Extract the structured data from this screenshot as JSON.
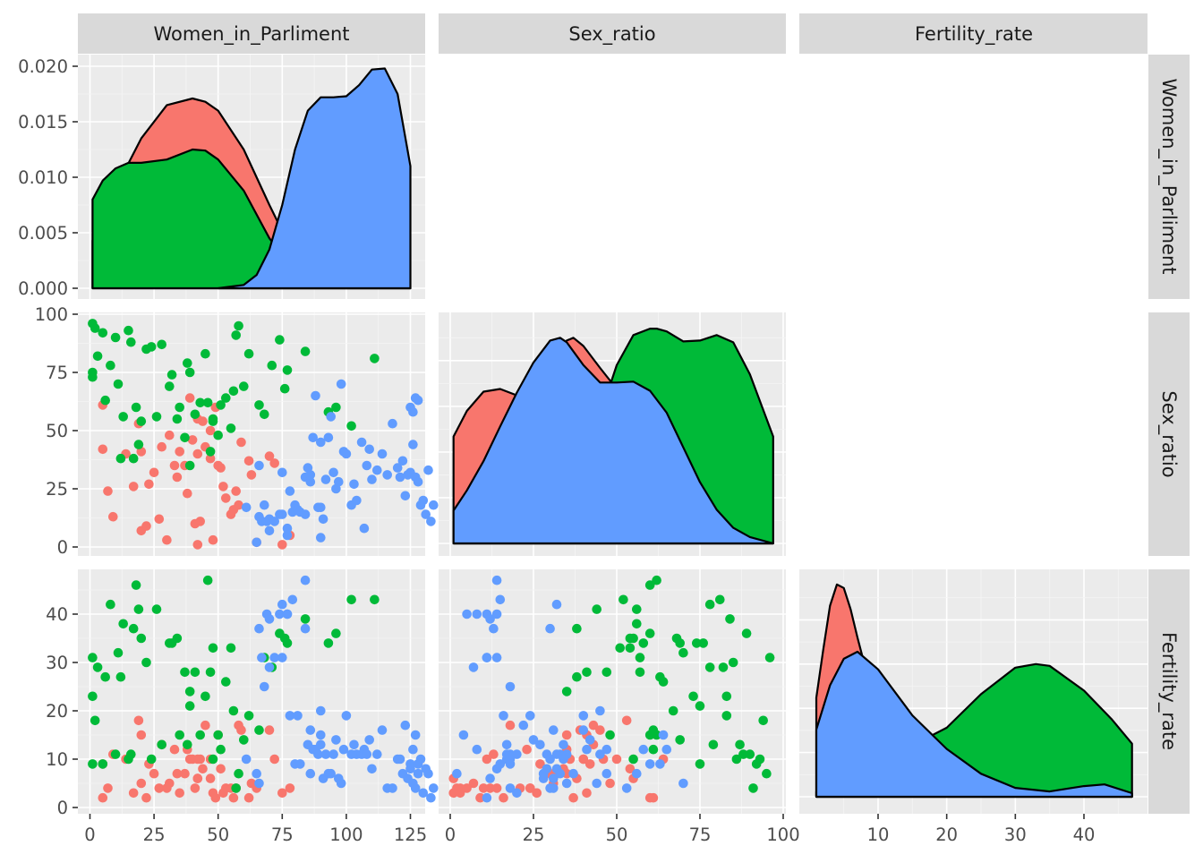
{
  "chart_data": {
    "type": "scatter",
    "title": "",
    "variables": [
      "Women_in_Parliment",
      "Sex_ratio",
      "Fertility_rate"
    ],
    "group_colors": [
      "#F8766D",
      "#00BA38",
      "#619CFF"
    ],
    "axes": {
      "Women_in_Parliment": {
        "range": [
          0,
          125
        ],
        "ticks": [
          "0",
          "25",
          "50",
          "75",
          "100",
          "125"
        ]
      },
      "Sex_ratio": {
        "range": [
          0,
          97
        ],
        "ticks": [
          "0",
          "25",
          "50",
          "75",
          "100"
        ]
      },
      "Fertility_rate": {
        "range": [
          1,
          47
        ],
        "ticks": [
          "10",
          "20",
          "30",
          "40"
        ]
      },
      "density_y": {
        "range": [
          0,
          0.0205
        ],
        "ticks": [
          "0.000",
          "0.005",
          "0.010",
          "0.015",
          "0.020"
        ]
      },
      "sex_ratio_y_ticks": [
        "0",
        "25",
        "50",
        "75",
        "100"
      ],
      "fertility_y_ticks": [
        "0",
        "10",
        "20",
        "30",
        "40"
      ],
      "sex_ratio_x_ticks": [
        "0",
        "25",
        "50",
        "75",
        "100"
      ]
    },
    "density_women": [
      {
        "x": [
          1,
          10,
          20,
          30,
          40,
          45,
          50,
          60,
          70,
          80,
          90,
          100,
          110,
          125
        ],
        "y": [
          0.0043,
          0.009,
          0.0135,
          0.0165,
          0.0171,
          0.0168,
          0.016,
          0.0125,
          0.0075,
          0.0028,
          0.0008,
          0.0001,
          0.0,
          0.0
        ]
      },
      {
        "x": [
          1,
          5,
          10,
          15,
          20,
          30,
          40,
          45,
          50,
          60,
          70,
          80,
          90,
          100,
          125
        ],
        "y": [
          0.008,
          0.0097,
          0.0108,
          0.0113,
          0.0113,
          0.0116,
          0.0125,
          0.0124,
          0.0116,
          0.0088,
          0.0045,
          0.0015,
          0.0003,
          0.0,
          0.0
        ]
      },
      {
        "x": [
          50,
          60,
          65,
          70,
          75,
          80,
          85,
          90,
          95,
          100,
          105,
          110,
          115,
          120,
          125
        ],
        "y": [
          0.0,
          0.0003,
          0.0012,
          0.0035,
          0.0075,
          0.0125,
          0.016,
          0.0172,
          0.0172,
          0.0173,
          0.0183,
          0.0197,
          0.0198,
          0.0175,
          0.011
        ]
      }
    ],
    "density_sex": [
      {
        "x": [
          1,
          5,
          10,
          15,
          20,
          25,
          30,
          35,
          37,
          40,
          45,
          50,
          55,
          60,
          65,
          70,
          75,
          80,
          85,
          90,
          97
        ],
        "y": [
          0.0117,
          0.0145,
          0.0166,
          0.0169,
          0.0162,
          0.0177,
          0.0202,
          0.0222,
          0.0225,
          0.0216,
          0.0192,
          0.0169,
          0.0145,
          0.012,
          0.0095,
          0.007,
          0.0045,
          0.0025,
          0.0012,
          0.0004,
          0.0
        ]
      },
      {
        "x": [
          1,
          10,
          20,
          30,
          40,
          45,
          50,
          55,
          60,
          62,
          65,
          70,
          75,
          80,
          85,
          90,
          97
        ],
        "y": [
          0.0,
          0.0001,
          0.0005,
          0.0025,
          0.0085,
          0.014,
          0.0195,
          0.0228,
          0.0235,
          0.0235,
          0.0232,
          0.0221,
          0.0222,
          0.0228,
          0.022,
          0.0185,
          0.0117
        ]
      },
      {
        "x": [
          1,
          5,
          10,
          15,
          20,
          25,
          30,
          33,
          35,
          40,
          45,
          50,
          55,
          60,
          65,
          70,
          75,
          80,
          85,
          90,
          97
        ],
        "y": [
          0.0036,
          0.0058,
          0.009,
          0.0128,
          0.0165,
          0.0198,
          0.0222,
          0.0225,
          0.022,
          0.0195,
          0.0176,
          0.0176,
          0.0177,
          0.0167,
          0.0143,
          0.0105,
          0.0067,
          0.0037,
          0.0017,
          0.0007,
          0.0
        ]
      }
    ],
    "density_fert": [
      {
        "x": [
          1,
          2,
          3,
          4,
          5,
          6,
          7,
          8,
          10,
          12,
          15,
          20,
          25,
          30,
          40,
          47
        ],
        "y": [
          0.056,
          0.083,
          0.108,
          0.12,
          0.118,
          0.106,
          0.09,
          0.075,
          0.059,
          0.05,
          0.04,
          0.022,
          0.01,
          0.004,
          0.0005,
          0.0
        ]
      },
      {
        "x": [
          1,
          5,
          10,
          15,
          20,
          25,
          30,
          33,
          35,
          40,
          44,
          47
        ],
        "y": [
          0.003,
          0.008,
          0.02,
          0.029,
          0.039,
          0.058,
          0.073,
          0.075,
          0.074,
          0.06,
          0.044,
          0.03
        ]
      },
      {
        "x": [
          1,
          3,
          5,
          7,
          10,
          15,
          20,
          25,
          30,
          35,
          40,
          43,
          47
        ],
        "y": [
          0.038,
          0.063,
          0.078,
          0.082,
          0.072,
          0.046,
          0.027,
          0.013,
          0.005,
          0.003,
          0.006,
          0.007,
          0.002
        ]
      }
    ],
    "points": [
      [
        [
          5,
          61,
          2
        ],
        [
          5,
          42,
          9
        ],
        [
          7,
          24,
          4
        ],
        [
          9,
          13,
          11
        ],
        [
          14,
          40,
          10
        ],
        [
          17,
          26,
          3
        ],
        [
          19,
          53,
          18
        ],
        [
          20,
          41,
          15
        ],
        [
          20,
          7,
          5
        ],
        [
          22,
          9,
          2
        ],
        [
          23,
          27,
          9
        ],
        [
          25,
          32,
          7
        ],
        [
          27,
          12,
          4
        ],
        [
          28,
          43,
          13
        ],
        [
          30,
          3,
          4
        ],
        [
          31,
          48,
          5
        ],
        [
          33,
          35,
          12
        ],
        [
          34,
          30,
          7
        ],
        [
          35,
          41,
          3
        ],
        [
          37,
          35,
          7
        ],
        [
          38,
          23,
          12
        ],
        [
          39,
          64,
          10
        ],
        [
          40,
          46,
          10
        ],
        [
          41,
          10,
          4
        ],
        [
          42,
          55,
          6
        ],
        [
          42,
          40,
          10
        ],
        [
          42,
          1,
          6
        ],
        [
          43,
          11,
          10
        ],
        [
          44,
          54,
          8
        ],
        [
          45,
          43,
          17
        ],
        [
          47,
          50,
          10
        ],
        [
          47,
          38,
          6
        ],
        [
          48,
          3,
          3
        ],
        [
          49,
          60,
          2
        ],
        [
          50,
          35,
          15
        ],
        [
          51,
          34,
          8
        ],
        [
          52,
          26,
          3
        ],
        [
          53,
          21,
          4
        ],
        [
          55,
          14,
          4
        ],
        [
          56,
          16,
          2
        ],
        [
          57,
          24,
          4
        ],
        [
          58,
          18,
          17
        ],
        [
          59,
          45,
          16
        ],
        [
          62,
          37,
          2
        ],
        [
          63,
          31,
          5
        ],
        [
          65,
          2,
          4
        ],
        [
          70,
          39,
          16
        ],
        [
          72,
          36,
          10
        ],
        [
          75,
          1,
          3
        ],
        [
          78,
          5,
          4
        ]
      ],
      [
        [
          1,
          75,
          9
        ],
        [
          1,
          73,
          23
        ],
        [
          1,
          96,
          31
        ],
        [
          2,
          94,
          18
        ],
        [
          3,
          82,
          29
        ],
        [
          5,
          92,
          9
        ],
        [
          6,
          63,
          27
        ],
        [
          8,
          78,
          42
        ],
        [
          10,
          90,
          11
        ],
        [
          11,
          70,
          32
        ],
        [
          12,
          38,
          27
        ],
        [
          13,
          56,
          38
        ],
        [
          15,
          93,
          10
        ],
        [
          16,
          88,
          11
        ],
        [
          17,
          38,
          37
        ],
        [
          18,
          60,
          46
        ],
        [
          19,
          44,
          41
        ],
        [
          20,
          54,
          35
        ],
        [
          22,
          85,
          30
        ],
        [
          24,
          86,
          10
        ],
        [
          26,
          56,
          41
        ],
        [
          28,
          87,
          13
        ],
        [
          31,
          69,
          34
        ],
        [
          32,
          74,
          34
        ],
        [
          34,
          55,
          35
        ],
        [
          35,
          60,
          15
        ],
        [
          37,
          47,
          28
        ],
        [
          38,
          79,
          13
        ],
        [
          39,
          75,
          21
        ],
        [
          39,
          35,
          24
        ],
        [
          41,
          57,
          28
        ],
        [
          43,
          62,
          15
        ],
        [
          45,
          83,
          23
        ],
        [
          46,
          62,
          47
        ],
        [
          47,
          41,
          28
        ],
        [
          48,
          54,
          33
        ],
        [
          48,
          55,
          10
        ],
        [
          50,
          48,
          15
        ],
        [
          51,
          61,
          12
        ],
        [
          53,
          64,
          26
        ],
        [
          55,
          51,
          33
        ],
        [
          56,
          67,
          20
        ],
        [
          57,
          91,
          4
        ],
        [
          58,
          95,
          7
        ],
        [
          60,
          69,
          14
        ],
        [
          62,
          83,
          19
        ],
        [
          66,
          61,
          16
        ],
        [
          68,
          57,
          31
        ],
        [
          71,
          78,
          29
        ],
        [
          74,
          89,
          36
        ],
        [
          76,
          68,
          35
        ],
        [
          77,
          76,
          34
        ],
        [
          84,
          84,
          39
        ],
        [
          93,
          58,
          34
        ],
        [
          96,
          60,
          36
        ],
        [
          102,
          52,
          43
        ],
        [
          111,
          81,
          43
        ]
      ],
      [
        [
          61,
          17,
          10
        ],
        [
          65,
          2,
          7
        ],
        [
          66,
          35,
          5
        ],
        [
          66,
          13,
          37
        ],
        [
          67,
          11,
          31
        ],
        [
          68,
          18,
          25
        ],
        [
          69,
          11,
          40
        ],
        [
          70,
          12,
          39
        ],
        [
          70,
          7,
          29
        ],
        [
          72,
          11,
          31
        ],
        [
          74,
          14,
          40
        ],
        [
          75,
          14,
          31
        ],
        [
          75,
          32,
          42
        ],
        [
          77,
          5,
          40
        ],
        [
          77,
          8,
          40
        ],
        [
          78,
          24,
          19
        ],
        [
          79,
          15,
          43
        ],
        [
          80,
          18,
          9
        ],
        [
          81,
          16,
          19
        ],
        [
          82,
          15,
          9
        ],
        [
          84,
          14,
          47
        ],
        [
          84,
          30,
          37
        ],
        [
          85,
          34,
          13
        ],
        [
          86,
          28,
          7
        ],
        [
          86,
          31,
          16
        ],
        [
          87,
          47,
          12
        ],
        [
          88,
          65,
          12
        ],
        [
          89,
          17,
          11
        ],
        [
          90,
          17,
          13
        ],
        [
          90,
          4,
          15
        ],
        [
          90,
          45,
          20
        ],
        [
          91,
          12,
          6
        ],
        [
          92,
          29,
          11
        ],
        [
          93,
          47,
          7
        ],
        [
          94,
          56,
          7
        ],
        [
          95,
          32,
          11
        ],
        [
          96,
          25,
          14
        ],
        [
          97,
          28,
          6
        ],
        [
          98,
          70,
          5
        ],
        [
          99,
          41,
          12
        ],
        [
          100,
          40,
          19
        ],
        [
          102,
          18,
          11
        ],
        [
          103,
          27,
          13
        ],
        [
          104,
          20,
          11
        ],
        [
          106,
          45,
          11
        ],
        [
          107,
          8,
          12
        ],
        [
          108,
          35,
          11
        ],
        [
          109,
          42,
          14
        ],
        [
          110,
          29,
          8
        ],
        [
          112,
          33,
          11
        ],
        [
          114,
          40,
          16
        ],
        [
          116,
          31,
          4
        ],
        [
          118,
          53,
          4
        ],
        [
          120,
          34,
          10
        ],
        [
          121,
          30,
          10
        ],
        [
          122,
          37,
          7
        ],
        [
          123,
          22,
          17
        ],
        [
          124,
          31,
          6
        ],
        [
          125,
          60,
          9
        ],
        [
          125,
          32,
          8
        ],
        [
          126,
          44,
          5
        ],
        [
          126,
          58,
          12
        ],
        [
          127,
          64,
          15
        ],
        [
          127,
          30,
          4
        ],
        [
          128,
          63,
          9
        ],
        [
          128,
          28,
          7
        ],
        [
          129,
          18,
          10
        ],
        [
          130,
          20,
          3
        ],
        [
          131,
          14,
          8
        ],
        [
          132,
          33,
          7
        ],
        [
          133,
          11,
          2
        ],
        [
          134,
          18,
          4
        ]
      ]
    ]
  },
  "strips": {
    "top": [
      "Women_in_Parliment",
      "Sex_ratio",
      "Fertility_rate"
    ],
    "right": [
      "Women_in_Parliment",
      "Sex_ratio",
      "Fertility_rate"
    ]
  }
}
